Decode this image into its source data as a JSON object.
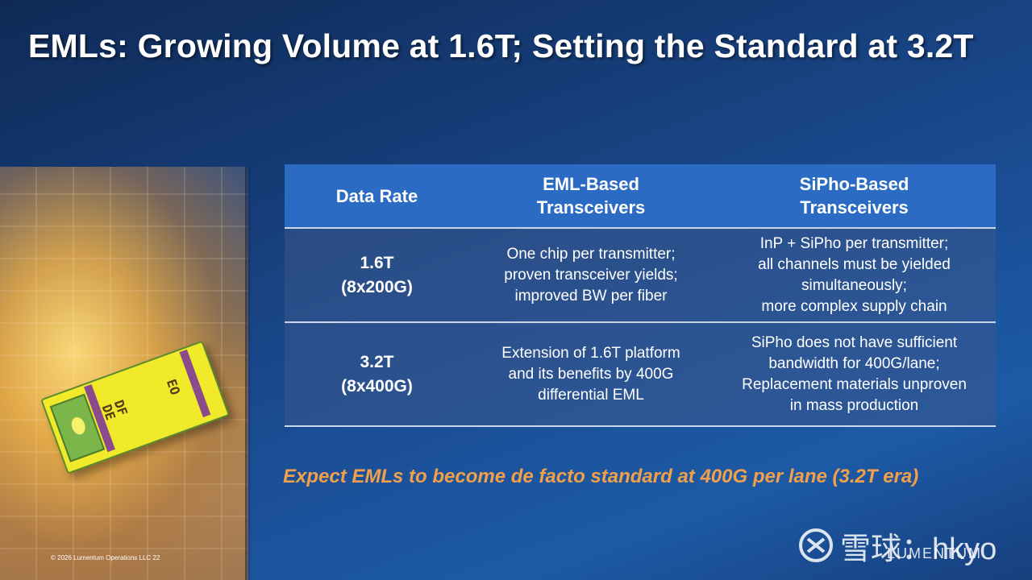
{
  "slide": {
    "title": "EMLs: Growing Volume at 1.6T; Setting the Standard at 3.2T",
    "tagline": "Expect EMLs to become de facto standard at 400G per lane (3.2T era)",
    "copyright": "© 2026 Lumentum Operations LLC    22",
    "logo": "LUMENTUM",
    "chip_labels": {
      "left": "DF\nDE",
      "right": "EO"
    }
  },
  "table": {
    "headers": [
      "Data Rate",
      "EML-Based\nTransceivers",
      "SiPho-Based\nTransceivers"
    ],
    "rows": [
      {
        "rate": "1.6T\n(8x200G)",
        "eml": "One chip per transmitter;\nproven transceiver yields;\nimproved BW per fiber",
        "sipho": "InP + SiPho per transmitter;\nall channels must be yielded\nsimultaneously;\nmore complex supply chain"
      },
      {
        "rate": "3.2T\n(8x400G)",
        "eml": "Extension of 1.6T platform\nand its benefits by 400G\ndifferential EML",
        "sipho": "SiPho does not have sufficient\nbandwidth for 400G/lane;\nReplacement materials unproven\nin mass production"
      }
    ]
  },
  "watermark": {
    "text": "雪球：hkyo"
  },
  "colors": {
    "header_bg": "#2c6bc4",
    "tagline": "#f0a04a",
    "chip": "#f0ea2b"
  }
}
